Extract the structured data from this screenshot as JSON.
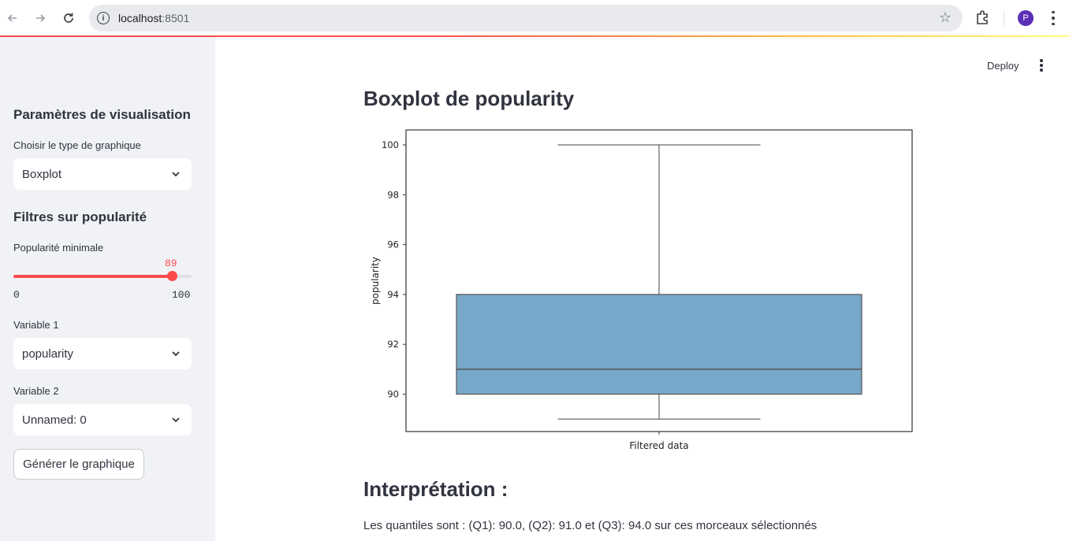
{
  "browser": {
    "url_host": "localhost",
    "url_port": ":8501",
    "profile_initial": "P"
  },
  "header": {
    "deploy_label": "Deploy"
  },
  "sidebar": {
    "title": "Paramètres de visualisation",
    "chart_type_label": "Choisir le type de graphique",
    "chart_type_value": "Boxplot",
    "filters_title": "Filtres sur popularité",
    "min_popularity_label": "Popularité minimale",
    "min_popularity_value": "89",
    "min_popularity_fraction": 0.89,
    "slider_min": "0",
    "slider_max": "100",
    "variable1_label": "Variable 1",
    "variable1_value": "popularity",
    "variable2_label": "Variable 2",
    "variable2_value": "Unnamed: 0",
    "generate_button": "Générer le graphique"
  },
  "main": {
    "chart_title": "Boxplot de popularity",
    "interpretation_title": "Interprétation :",
    "interpretation_text": "Les quantiles sont : (Q1): 90.0, (Q2): 91.0 et (Q3): 94.0 sur ces morceaux sélectionnés"
  },
  "chart_data": {
    "type": "boxplot",
    "categories": [
      "Filtered data"
    ],
    "ylabel": "popularity",
    "xlabel": "",
    "ylim": [
      88.5,
      100.6
    ],
    "yticks": [
      90,
      92,
      94,
      96,
      98,
      100
    ],
    "box": {
      "whisker_low": 89,
      "q1": 90,
      "median": 91,
      "q3": 94,
      "whisker_high": 100
    },
    "box_color": "#77a8c9",
    "grid": false
  }
}
